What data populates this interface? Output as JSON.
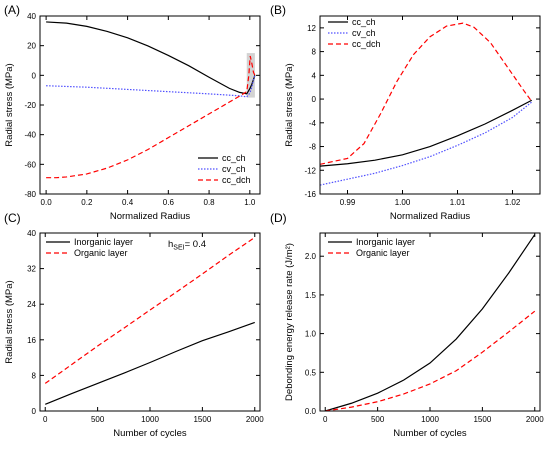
{
  "figure": {
    "panels": [
      "(A)",
      "(B)",
      "(C)",
      "(D)"
    ]
  },
  "chart_data": [
    {
      "panel": "(A)",
      "type": "line",
      "title": "",
      "xlabel": "Normalized Radius",
      "ylabel": "Radial stress (MPa)",
      "xlim": [
        -0.03,
        1.05
      ],
      "ylim": [
        -80,
        40
      ],
      "xticks": [
        0.0,
        0.2,
        0.4,
        0.6,
        0.8,
        1.0
      ],
      "xtick_labels": [
        "0.0",
        "0.2",
        "0.4",
        "0.6",
        "0.8",
        "1.0"
      ],
      "yticks": [
        -80,
        -60,
        -40,
        -20,
        0,
        20,
        40
      ],
      "ytick_labels": [
        "-80",
        "-60",
        "-40",
        "-20",
        "0",
        "20",
        "40"
      ],
      "grid": false,
      "legend_position": "bottom-right",
      "shaded_region": {
        "x": [
          0.985,
          1.025
        ],
        "y": [
          -15,
          15
        ],
        "color": "#c8c8c8"
      },
      "series": [
        {
          "name": "cc_ch",
          "color": "#000000",
          "dash": "solid",
          "x": [
            0.0,
            0.1,
            0.2,
            0.3,
            0.4,
            0.5,
            0.6,
            0.7,
            0.8,
            0.9,
            0.95,
            0.985,
            1.0,
            1.01,
            1.02,
            1.025
          ],
          "y": [
            36,
            35.2,
            33,
            29.6,
            25.3,
            19.8,
            13.4,
            6.5,
            -1.3,
            -8.8,
            -11.5,
            -12.5,
            -9,
            -6,
            -2,
            0
          ]
        },
        {
          "name": "cv_ch",
          "color": "#5050ff",
          "dash": "dotted",
          "x": [
            0.0,
            0.2,
            0.4,
            0.6,
            0.8,
            0.95,
            0.985,
            1.0,
            1.01,
            1.02,
            1.025
          ],
          "y": [
            -7,
            -8,
            -9.5,
            -11,
            -12.5,
            -13.8,
            -14.5,
            -12,
            -8,
            -2,
            0
          ]
        },
        {
          "name": "cc_dch",
          "color": "#ff0000",
          "dash": "dashed",
          "x": [
            0.0,
            0.05,
            0.1,
            0.2,
            0.3,
            0.4,
            0.5,
            0.6,
            0.7,
            0.8,
            0.9,
            0.95,
            0.985,
            0.995,
            1.002,
            1.01,
            1.018,
            1.025
          ],
          "y": [
            -69,
            -69,
            -68.5,
            -66.5,
            -62.5,
            -57,
            -50,
            -42,
            -34,
            -26,
            -18,
            -14,
            -11,
            0,
            13,
            8,
            2,
            0
          ]
        }
      ]
    },
    {
      "panel": "(B)",
      "type": "line",
      "title": "",
      "xlabel": "Normalized Radius",
      "ylabel": "Radial stress (MPa)",
      "xlim": [
        0.985,
        1.025
      ],
      "ylim": [
        -16,
        14
      ],
      "xticks": [
        0.99,
        1.0,
        1.01,
        1.02
      ],
      "xtick_labels": [
        "0.99",
        "1.00",
        "1.01",
        "1.02"
      ],
      "yticks": [
        -16,
        -12,
        -8,
        -4,
        0,
        4,
        8,
        12
      ],
      "ytick_labels": [
        "-16",
        "-12",
        "-8",
        "-4",
        "0",
        "4",
        "8",
        "12"
      ],
      "grid": false,
      "legend_position": "top-left",
      "series": [
        {
          "name": "cc_ch",
          "color": "#000000",
          "dash": "solid",
          "x": [
            0.985,
            0.99,
            0.995,
            1.0,
            1.005,
            1.01,
            1.015,
            1.02,
            1.0235
          ],
          "y": [
            -11.3,
            -10.9,
            -10.3,
            -9.4,
            -8.0,
            -6.2,
            -4.2,
            -1.9,
            -0.2
          ]
        },
        {
          "name": "cv_ch",
          "color": "#5050ff",
          "dash": "dotted",
          "x": [
            0.985,
            0.99,
            0.995,
            1.0,
            1.005,
            1.01,
            1.015,
            1.02,
            1.0235
          ],
          "y": [
            -14.5,
            -13.5,
            -12.5,
            -11.2,
            -9.7,
            -7.8,
            -5.7,
            -3.1,
            -0.5
          ]
        },
        {
          "name": "cc_dch",
          "color": "#ff0000",
          "dash": "dashed",
          "x": [
            0.985,
            0.99,
            0.993,
            0.996,
            0.999,
            1.002,
            1.005,
            1.008,
            1.011,
            1.013,
            1.016,
            1.019,
            1.022,
            1.0235
          ],
          "y": [
            -11.0,
            -10.0,
            -7.5,
            -2.5,
            3.0,
            7.5,
            10.5,
            12.3,
            12.8,
            12.1,
            9.5,
            5.5,
            1.5,
            -0.4
          ]
        }
      ]
    },
    {
      "panel": "(C)",
      "type": "line",
      "title": "",
      "xlabel": "Number of cycles",
      "ylabel": "Radial stress (MPa)",
      "xlim": [
        -50,
        2050
      ],
      "ylim": [
        0,
        40
      ],
      "xticks": [
        0,
        500,
        1000,
        1500,
        2000
      ],
      "xtick_labels": [
        "0",
        "500",
        "1000",
        "1500",
        "2000"
      ],
      "yticks": [
        0,
        8,
        16,
        24,
        32,
        40
      ],
      "ytick_labels": [
        "0",
        "8",
        "16",
        "24",
        "32",
        "40"
      ],
      "grid": false,
      "legend_position": "top-left",
      "annotation": {
        "main": "h",
        "sub": "SEI",
        "rest": "= 0.4"
      },
      "series": [
        {
          "name": "Inorganic layer",
          "color": "#000000",
          "dash": "solid",
          "x": [
            0,
            250,
            500,
            750,
            1000,
            1250,
            1500,
            1750,
            2000
          ],
          "y": [
            1.5,
            3.9,
            6.2,
            8.5,
            10.9,
            13.4,
            15.8,
            17.8,
            19.9
          ]
        },
        {
          "name": "Organic layer",
          "color": "#ff0000",
          "dash": "dashed",
          "x": [
            0,
            250,
            500,
            750,
            1000,
            1250,
            1500,
            1750,
            2000
          ],
          "y": [
            6.2,
            10.4,
            14.6,
            18.6,
            22.7,
            26.7,
            30.8,
            35.0,
            39.0
          ]
        }
      ]
    },
    {
      "panel": "(D)",
      "type": "line",
      "title": "",
      "xlabel": "Number of cycles",
      "ylabel": "Debonding energy release rate (J/m²)",
      "xlim": [
        -50,
        2050
      ],
      "ylim": [
        0,
        2.3
      ],
      "xticks": [
        0,
        500,
        1000,
        1500,
        2000
      ],
      "xtick_labels": [
        "0",
        "500",
        "1000",
        "1500",
        "2000"
      ],
      "yticks": [
        0.0,
        0.5,
        1.0,
        1.5,
        2.0
      ],
      "ytick_labels": [
        "0.0",
        "0.5",
        "1.0",
        "1.5",
        "2.0"
      ],
      "grid": false,
      "legend_position": "top-left",
      "series": [
        {
          "name": "Inorganic layer",
          "color": "#000000",
          "dash": "solid",
          "x": [
            0,
            250,
            500,
            750,
            1000,
            1250,
            1500,
            1750,
            2000
          ],
          "y": [
            0.0,
            0.1,
            0.23,
            0.4,
            0.62,
            0.93,
            1.32,
            1.78,
            2.28
          ]
        },
        {
          "name": "Organic layer",
          "color": "#ff0000",
          "dash": "dashed",
          "x": [
            0,
            250,
            500,
            750,
            1000,
            1250,
            1500,
            1750,
            2000
          ],
          "y": [
            0.0,
            0.05,
            0.12,
            0.22,
            0.35,
            0.52,
            0.76,
            1.02,
            1.29
          ]
        }
      ]
    }
  ]
}
